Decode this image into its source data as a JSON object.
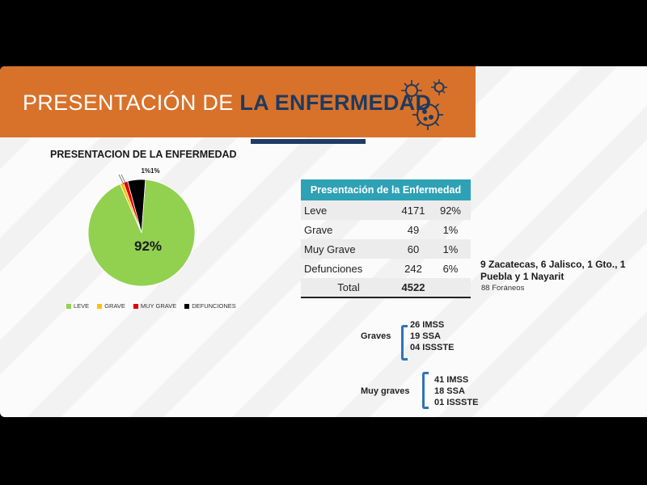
{
  "banner": {
    "title_light": "PRESENTACIÓN DE ",
    "title_bold": "LA ENFERMEDAD"
  },
  "chart_data": {
    "type": "pie",
    "title": "PRESENTACION DE LA ENFERMEDAD",
    "categories": [
      "LEVE",
      "GRAVE",
      "MUY GRAVE",
      "DEFUNCIONES"
    ],
    "values": [
      4171,
      49,
      60,
      242
    ],
    "colors": [
      "#92d050",
      "#ffc000",
      "#e00000",
      "#000000"
    ],
    "data_labels": {
      "leve": "92%",
      "small": "1%1%"
    },
    "legend_position": "bottom"
  },
  "table": {
    "header": "Presentación de la Enfermedad",
    "rows": [
      {
        "label": "Leve",
        "value": "4171",
        "pct": "92%"
      },
      {
        "label": "Grave",
        "value": "49",
        "pct": "1%"
      },
      {
        "label": "Muy Grave",
        "value": "60",
        "pct": "1%"
      },
      {
        "label": "Defunciones",
        "value": "242",
        "pct": "6%"
      }
    ],
    "total": {
      "label": "Total",
      "value": "4522"
    }
  },
  "notes": {
    "states": "9 Zacatecas, 6 Jalisco, 1 Gto., 1 Puebla y 1 Nayarit",
    "foraneos": "88 Foráneos"
  },
  "graves": {
    "label": "Graves",
    "items": [
      "26 IMSS",
      "19 SSA",
      "04 ISSSTE"
    ]
  },
  "muy_graves": {
    "label": "Muy graves",
    "items": [
      "41 IMSS",
      "18 SSA",
      "01 ISSSTE"
    ]
  }
}
